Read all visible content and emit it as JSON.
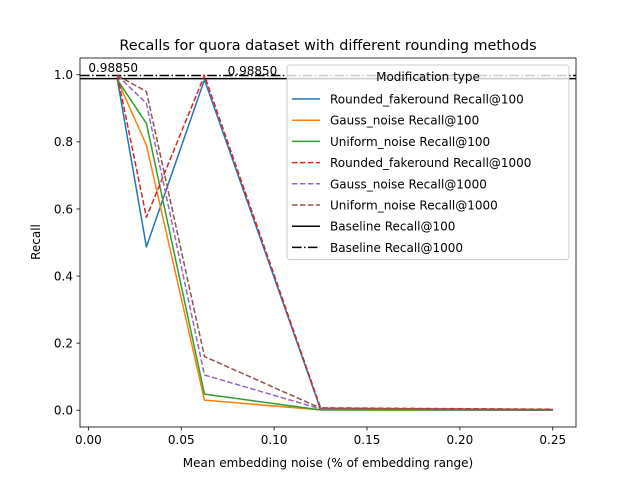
{
  "chart_data": {
    "type": "line",
    "title": "Recalls for quora dataset with different rounding methods",
    "xlabel": "Mean embedding noise (% of embedding range)",
    "ylabel": "Recall",
    "xlim": [
      -0.0045,
      0.2625
    ],
    "ylim": [
      -0.05,
      1.05
    ],
    "xticks": [
      0.0,
      0.05,
      0.1,
      0.15,
      0.2,
      0.25
    ],
    "xtick_labels": [
      "0.00",
      "0.05",
      "0.10",
      "0.15",
      "0.20",
      "0.25"
    ],
    "yticks": [
      0.0,
      0.2,
      0.4,
      0.6,
      0.8,
      1.0
    ],
    "ytick_labels": [
      "0.0",
      "0.2",
      "0.4",
      "0.6",
      "0.8",
      "1.0"
    ],
    "grid": false,
    "legend": {
      "title": "Modification type",
      "placement": "upper right"
    },
    "x": [
      0.015625,
      0.03125,
      0.0625,
      0.125,
      0.25
    ],
    "series": [
      {
        "name": "Rounded_fakeround Recall@100",
        "color": "#1f77b4",
        "dash": "solid",
        "values": [
          0.985,
          0.487,
          0.985,
          0.003,
          0.001
        ]
      },
      {
        "name": "Gauss_noise Recall@100",
        "color": "#ff7f0e",
        "dash": "solid",
        "values": [
          0.985,
          0.79,
          0.03,
          0.001,
          0.0
        ]
      },
      {
        "name": "Uniform_noise Recall@100",
        "color": "#2ca02c",
        "dash": "solid",
        "values": [
          0.985,
          0.855,
          0.048,
          0.001,
          0.0
        ]
      },
      {
        "name": "Rounded_fakeround Recall@1000",
        "color": "#d62728",
        "dash": "dashed",
        "values": [
          0.998,
          0.575,
          0.998,
          0.007,
          0.003
        ]
      },
      {
        "name": "Gauss_noise Recall@1000",
        "color": "#9467bd",
        "dash": "dashed",
        "values": [
          0.998,
          0.915,
          0.105,
          0.004,
          0.001
        ]
      },
      {
        "name": "Uniform_noise Recall@1000",
        "color": "#8c564b",
        "dash": "dashed",
        "values": [
          0.998,
          0.95,
          0.16,
          0.006,
          0.002
        ]
      }
    ],
    "baselines": [
      {
        "name": "Baseline Recall@100",
        "color": "#000000",
        "dash": "solid",
        "value": 0.9885
      },
      {
        "name": "Baseline Recall@1000",
        "color": "#000000",
        "dash": "dashdot",
        "value": 0.998
      }
    ],
    "annotations": [
      {
        "text": "0.98850",
        "x": 0.0,
        "y": 0.998
      },
      {
        "text": "0.98850",
        "x": 0.075,
        "y": 0.9885
      }
    ]
  }
}
